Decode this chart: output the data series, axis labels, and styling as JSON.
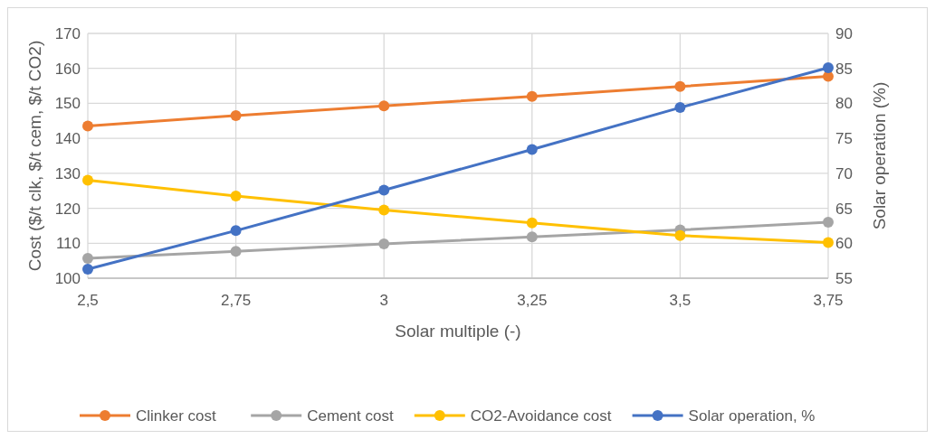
{
  "chart_data": {
    "type": "line",
    "xlabel": "Solar multiple (-)",
    "ylabel": "Cost ($/t clk, $/t cem, $/t CO2)",
    "y2label": "Solar operation (%)",
    "categories": [
      "2,5",
      "2,75",
      "3",
      "3,25",
      "3,5",
      "3,75"
    ],
    "series": [
      {
        "name": "Clinker cost",
        "color": "#ed7d31",
        "values": [
          143.5,
          146.5,
          149.3,
          152,
          154.8,
          157.7
        ]
      },
      {
        "name": "Cement cost",
        "color": "#a5a5a5",
        "values": [
          105.7,
          107.7,
          109.8,
          111.8,
          113.8,
          116
        ]
      },
      {
        "name": "CO2-Avoidance cost",
        "color": "#ffc000",
        "values": [
          128,
          123.5,
          119.5,
          115.8,
          112.2,
          110.2
        ]
      },
      {
        "name": "Solar operation, %",
        "color": "#4472c4",
        "axis": "y2",
        "values": [
          56.3,
          61.8,
          67.6,
          73.4,
          79.4,
          85.1
        ]
      }
    ],
    "ylim": [
      100,
      170
    ],
    "yticks": [
      100,
      110,
      120,
      130,
      140,
      150,
      160,
      170
    ],
    "y2lim": [
      55,
      90
    ],
    "y2ticks": [
      55,
      60,
      65,
      70,
      75,
      80,
      85,
      90
    ],
    "grid": true,
    "legend": "bottom",
    "marker": "circle",
    "line_style": "solid"
  }
}
